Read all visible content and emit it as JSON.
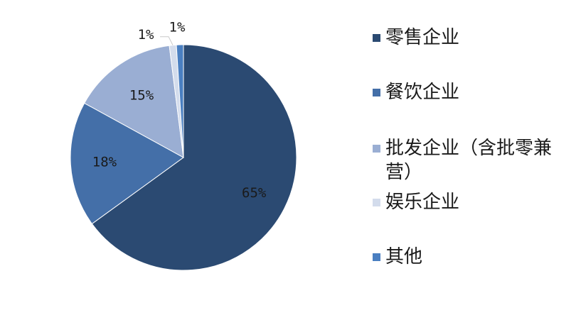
{
  "chart_data": {
    "type": "pie",
    "title": "",
    "start_angle_deg": 0,
    "direction": "clockwise",
    "legend_position": "right",
    "slices": [
      {
        "label": "零售企业",
        "value": 65,
        "value_label": "65%",
        "color": "#2b4a72"
      },
      {
        "label": "餐饮企业",
        "value": 18,
        "value_label": "18%",
        "color": "#446fa8"
      },
      {
        "label": "批发企业（含批零兼营）",
        "value": 15,
        "value_label": "15%",
        "color": "#9aaed3"
      },
      {
        "label": "娱乐企业",
        "value": 1,
        "value_label": "1%",
        "color": "#d3dcec"
      },
      {
        "label": "其他",
        "value": 1,
        "value_label": "1%",
        "color": "#4a7fc1"
      }
    ]
  }
}
